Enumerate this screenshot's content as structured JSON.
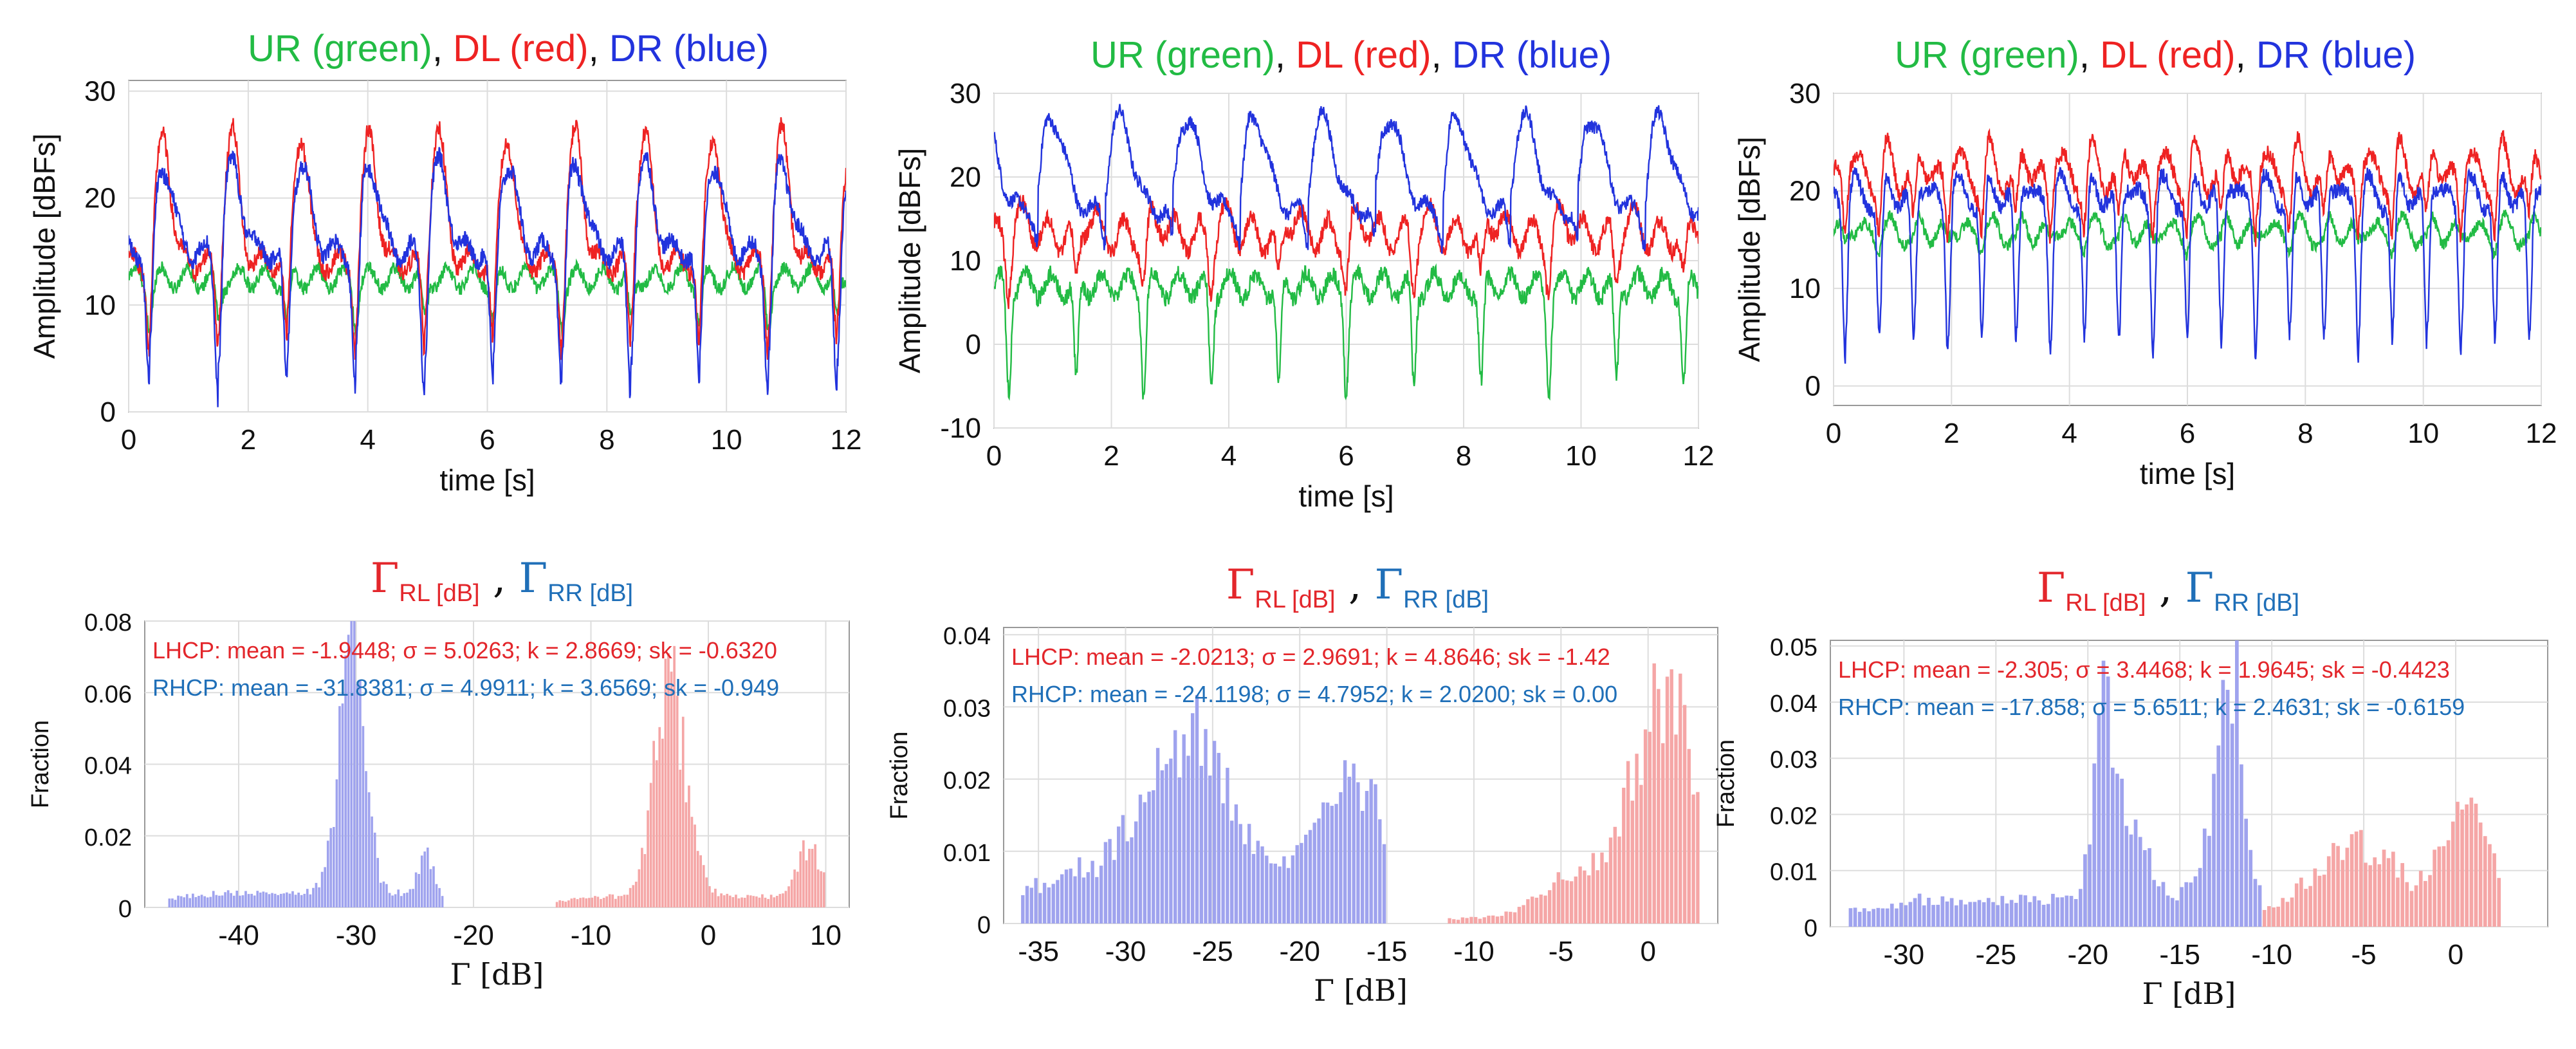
{
  "colors": {
    "green": "#22bb44",
    "red": "#ee2222",
    "blue": "#2233dd",
    "lhcp_text": "#e3262b",
    "rhcp_text": "#1f6fb8",
    "hist_blue": "#9fa3ee",
    "hist_red": "#f5a6a6",
    "grid": "#dddddd",
    "axis": "#999999"
  },
  "chart_data": [
    {
      "type": "line",
      "title_parts": [
        "UR (green)",
        ", ",
        "DL (red)",
        ", ",
        "DR (blue)"
      ],
      "xlabel": "time [s]",
      "ylabel": "Amplitude [dBFs]",
      "xlim": [
        0,
        12
      ],
      "ylim": [
        0,
        31
      ],
      "xticks": [
        "0",
        "2",
        "4",
        "6",
        "8",
        "10",
        "12"
      ],
      "yticks": [
        "0",
        "10",
        "20",
        "30"
      ],
      "grid": true,
      "series": [
        {
          "name": "UR (green)",
          "period": 1.15,
          "base": 12.5,
          "dip_depth": 4,
          "dip_width": 0.06,
          "peak_height": 0,
          "peak_width": 0.2,
          "phase": 0.35,
          "osc_amp": 1.0,
          "noise": 0.6
        },
        {
          "name": "DL (red)",
          "period": 1.15,
          "base": 14,
          "dip_depth": 8,
          "dip_width": 0.06,
          "peak_height": 12,
          "peak_width": 0.12,
          "phase": 0.35,
          "osc_amp": 1.0,
          "noise": 0.8
        },
        {
          "name": "DR (blue)",
          "period": 1.15,
          "base": 15,
          "dip_depth": 13,
          "dip_width": 0.07,
          "peak_height": 8,
          "peak_width": 0.16,
          "phase": 0.35,
          "osc_amp": 1.0,
          "noise": 0.8
        }
      ]
    },
    {
      "type": "line",
      "title_parts": [
        "UR (green)",
        ", ",
        "DL (red)",
        ", ",
        "DR (blue)"
      ],
      "xlabel": "time [s]",
      "ylabel": "Amplitude [dBFs]",
      "xlim": [
        0,
        12
      ],
      "ylim": [
        -10,
        30
      ],
      "xticks": [
        "0",
        "2",
        "4",
        "6",
        "8",
        "10",
        "12"
      ],
      "yticks": [
        "-10",
        "0",
        "10",
        "20",
        "30"
      ],
      "grid": true,
      "series": [
        {
          "name": "UR (green)",
          "period": 1.15,
          "base": 7,
          "dip_depth": 12,
          "dip_width": 0.05,
          "peak_height": 0,
          "peak_width": 0.2,
          "phase": 0.25,
          "osc_amp": 1.5,
          "noise": 1.0
        },
        {
          "name": "DL (red)",
          "period": 1.15,
          "base": 13,
          "dip_depth": 6,
          "dip_width": 0.06,
          "peak_height": 2,
          "peak_width": 0.15,
          "phase": 0.25,
          "osc_amp": 2.0,
          "noise": 1.0
        },
        {
          "name": "DR (blue)",
          "period": 1.15,
          "base": 16,
          "dip_depth": 4,
          "dip_width": 0.07,
          "peak_height": 11,
          "peak_width": 0.22,
          "phase": 0.75,
          "osc_amp": 1.0,
          "noise": 0.8
        }
      ]
    },
    {
      "type": "line",
      "title_parts": [
        "UR (green)",
        ", ",
        "DL (red)",
        ", ",
        "DR (blue)"
      ],
      "xlabel": "time [s]",
      "ylabel": "Amplitude [dBFs]",
      "xlim": [
        0,
        12
      ],
      "ylim": [
        -2,
        30
      ],
      "xticks": [
        "0",
        "2",
        "4",
        "6",
        "8",
        "10",
        "12"
      ],
      "yticks": [
        "0",
        "10",
        "20",
        "30"
      ],
      "grid": true,
      "series": [
        {
          "name": "UR (green)",
          "period": 0.58,
          "base": 15.5,
          "dip_depth": 1,
          "dip_width": 0.05,
          "peak_height": 1,
          "peak_width": 0.1,
          "phase": 0.2,
          "osc_amp": 1.2,
          "noise": 0.6
        },
        {
          "name": "DL (red)",
          "period": 0.58,
          "base": 21,
          "dip_depth": 5,
          "dip_width": 0.05,
          "peak_height": 3,
          "peak_width": 0.1,
          "phase": 0.2,
          "osc_amp": 1.5,
          "noise": 0.8
        },
        {
          "name": "DR (blue)",
          "period": 0.58,
          "base": 19,
          "dip_depth": 15,
          "dip_width": 0.05,
          "peak_height": 2,
          "peak_width": 0.1,
          "phase": 0.2,
          "osc_amp": 1.0,
          "noise": 0.8
        }
      ]
    },
    {
      "type": "bar",
      "subtype": "histogram",
      "title_parts": [
        "RL [dB]",
        "RR [dB]"
      ],
      "xlabel": "[dB]",
      "ylabel": "Fraction",
      "xlim": [
        -48,
        12
      ],
      "ylim": [
        0,
        0.08
      ],
      "xticks": [
        "-40",
        "-30",
        "-20",
        "-10",
        "0",
        "10"
      ],
      "yticks": [
        "0",
        "0.02",
        "0.04",
        "0.06",
        "0.08"
      ],
      "grid": true,
      "stats": {
        "lhcp": "LHCP: mean = -1.9448; σ = 5.0263; k = 2.8669; sk = -0.6320",
        "rhcp": "RHCP: mean = -31.8381; σ = 4.9911; k = 3.6569; sk = -0.949"
      },
      "series": [
        {
          "name": "RHCP",
          "x_start": -46,
          "x_end": -22.5,
          "floor": 0.004,
          "peaks": [
            [
              -30.5,
              0.062,
              1.1
            ],
            [
              -29.8,
              0.012,
              0.6
            ],
            [
              -24.2,
              0.015,
              0.5
            ]
          ]
        },
        {
          "name": "LHCP",
          "x_start": -13,
          "x_end": 10,
          "floor": 0.003,
          "peaks": [
            [
              -3,
              0.046,
              1.3
            ],
            [
              -4.2,
              0.02,
              1.0
            ],
            [
              8.5,
              0.015,
              0.9
            ]
          ]
        }
      ]
    },
    {
      "type": "bar",
      "subtype": "histogram",
      "title_parts": [
        "RL [dB]",
        "RR [dB]"
      ],
      "xlabel": "[dB]",
      "ylabel": "Fraction",
      "xlim": [
        -37,
        4
      ],
      "ylim": [
        0,
        0.041
      ],
      "xticks": [
        "-35",
        "-30",
        "-25",
        "-20",
        "-15",
        "-10",
        "-5",
        "0"
      ],
      "yticks": [
        "0",
        "0.01",
        "0.02",
        "0.03",
        "0.04"
      ],
      "grid": true,
      "stats": {
        "lhcp": "LHCP: mean = -2.0213; σ = 2.9691; k = 4.8646; sk = -1.42",
        "rhcp": "RHCP: mean = -24.1198; σ = 4.7952; k = 2.0200; sk = 0.00"
      },
      "series": [
        {
          "name": "RHCP",
          "x_start": -36,
          "x_end": -15,
          "floor": 0.008,
          "peaks": [
            [
              -26,
              0.018,
              1.6
            ],
            [
              -29,
              0.006,
              1.2
            ],
            [
              -17,
              0.012,
              1.5
            ]
          ]
        },
        {
          "name": "LHCP",
          "x_start": -11.5,
          "x_end": 3,
          "floor": 0.001,
          "peaks": [
            [
              0.5,
              0.028,
              1.6
            ],
            [
              -4,
              0.006,
              2.0
            ],
            [
              2.2,
              0.01,
              0.6
            ]
          ]
        }
      ]
    },
    {
      "type": "bar",
      "subtype": "histogram",
      "title_parts": [
        "RL [dB]",
        "RR [dB]"
      ],
      "xlabel": "[dB]",
      "ylabel": "Fraction",
      "xlim": [
        -34,
        5
      ],
      "ylim": [
        0,
        0.051
      ],
      "xticks": [
        "-30",
        "-25",
        "-20",
        "-15",
        "-10",
        "-5",
        "0"
      ],
      "yticks": [
        "0",
        "0.01",
        "0.02",
        "0.03",
        "0.04",
        "0.05"
      ],
      "grid": true,
      "stats": {
        "lhcp": "LHCP: mean = -2.305; σ = 3.4468; k = 1.9645; sk = -0.4423",
        "rhcp": "RHCP: mean = -17.858; σ = 5.6511; k = 2.4631; sk = -0.6159"
      },
      "series": [
        {
          "name": "RHCP",
          "x_start": -33,
          "x_end": -10.5,
          "floor": 0.005,
          "peaks": [
            [
              -19.2,
              0.032,
              0.6
            ],
            [
              -12.2,
              0.04,
              0.6
            ],
            [
              -17.5,
              0.012,
              0.8
            ],
            [
              -13.5,
              0.01,
              0.7
            ]
          ]
        },
        {
          "name": "LHCP",
          "x_start": -10.5,
          "x_end": 2.5,
          "floor": 0.004,
          "peaks": [
            [
              0.5,
              0.018,
              1.2
            ],
            [
              -4.5,
              0.008,
              1.5
            ],
            [
              -7,
              0.006,
              1.5
            ]
          ]
        }
      ]
    }
  ]
}
